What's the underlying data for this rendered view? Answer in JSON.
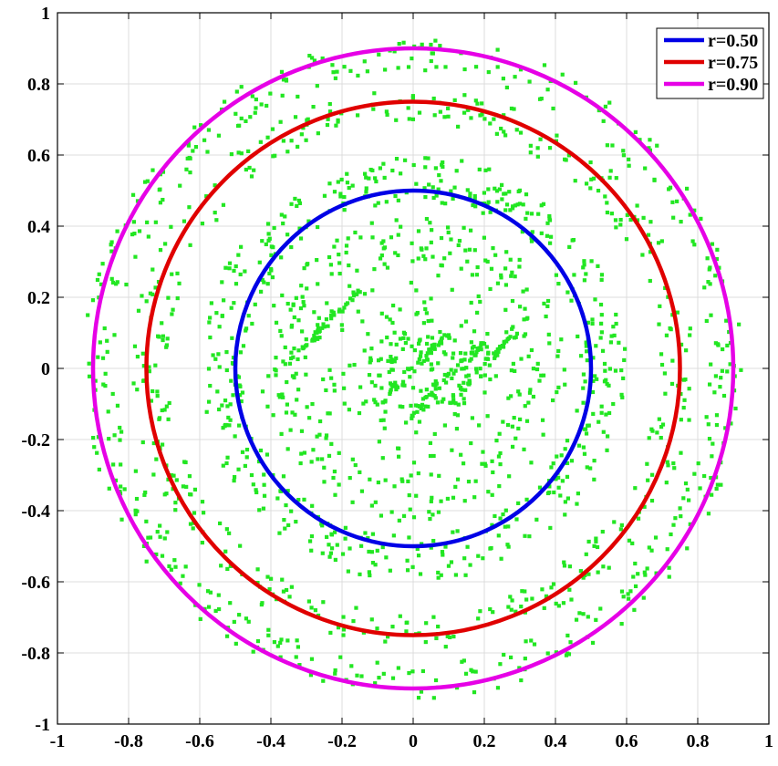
{
  "chart_data": {
    "type": "scatter",
    "title": "",
    "xlabel": "",
    "ylabel": "",
    "xlim": [
      -1,
      1
    ],
    "ylim": [
      -1,
      1
    ],
    "grid": true,
    "legend_position": "top-right",
    "x_tick_labels": [
      "-1",
      "-0.8",
      "-0.6",
      "-0.4",
      "-0.2",
      "0",
      "0.2",
      "0.4",
      "0.6",
      "0.8",
      "1"
    ],
    "y_tick_labels": [
      "-1",
      "-0.8",
      "-0.6",
      "-0.4",
      "-0.2",
      "0",
      "0.2",
      "0.4",
      "0.6",
      "0.8",
      "1"
    ],
    "circles": [
      {
        "name": "r=0.50",
        "radius": 0.5,
        "center": [
          0,
          0
        ],
        "color": "#0000e6"
      },
      {
        "name": "r=0.75",
        "radius": 0.75,
        "center": [
          0,
          0
        ],
        "color": "#e00000"
      },
      {
        "name": "r=0.90",
        "radius": 0.9,
        "center": [
          0,
          0
        ],
        "color": "#e600e6"
      }
    ],
    "scatter": {
      "color": "#22e622",
      "bands": [
        {
          "r": [
            0.83,
            0.93
          ],
          "weight": 0.21
        },
        {
          "r": [
            0.69,
            0.79
          ],
          "weight": 0.19
        },
        {
          "r": [
            0.47,
            0.6
          ],
          "weight": 0.24
        },
        {
          "r": [
            0.3,
            0.43
          ],
          "weight": 0.14
        },
        {
          "r": [
            0.05,
            0.3
          ],
          "weight": 0.1
        }
      ],
      "streaks": [
        {
          "from": [
            -0.1,
            -0.1
          ],
          "to": [
            0.1,
            0.1
          ]
        },
        {
          "from": [
            0.0,
            -0.12
          ],
          "to": [
            0.2,
            0.08
          ]
        },
        {
          "from": [
            0.1,
            -0.1
          ],
          "to": [
            0.28,
            0.1
          ]
        },
        {
          "from": [
            -0.35,
            0.02
          ],
          "to": [
            -0.15,
            0.22
          ]
        }
      ]
    }
  }
}
